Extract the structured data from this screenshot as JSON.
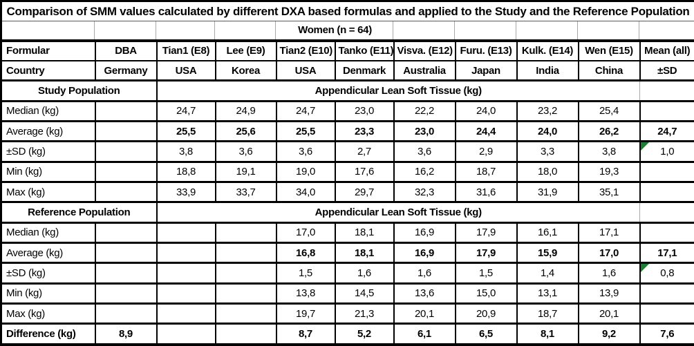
{
  "colors": {
    "border": "#000000",
    "gridline": "#a6a6a6",
    "error_indicator": "#1e7d32",
    "background": "#ffffff",
    "text": "#000000"
  },
  "icons": {
    "error_indicator": "excel-error-triangle"
  },
  "chart_data": {
    "type": "table",
    "title": "Comparison of SMM values calculated by different DXA based formulas and applied to the Study and the Reference Population",
    "subtitle": "Women (n = 64)",
    "header": {
      "formula_label": "Formular",
      "country_label": "Country",
      "formulas": [
        "DBA",
        "Tian1 (E8)",
        "Lee (E9)",
        "Tian2 (E10)",
        "Tanko (E11)",
        "Visva. (E12)",
        "Furu. (E13)",
        "Kulk. (E14)",
        "Wen (E15)",
        "Mean (all)"
      ],
      "countries": [
        "Germany",
        "USA",
        "Korea",
        "USA",
        "Denmark",
        "Australia",
        "Japan",
        "India",
        "China",
        "±SD"
      ]
    },
    "sections": [
      {
        "title": "Study Population",
        "measure": "Appendicular Lean Soft Tissue (kg)",
        "rows": [
          {
            "label": "Median (kg)",
            "bold": false,
            "error_mean": false,
            "values": [
              "",
              "24,7",
              "24,9",
              "24,7",
              "23,0",
              "22,2",
              "24,0",
              "23,2",
              "25,4",
              ""
            ]
          },
          {
            "label": "Average (kg)",
            "bold": true,
            "error_mean": false,
            "values": [
              "",
              "25,5",
              "25,6",
              "25,5",
              "23,3",
              "23,0",
              "24,4",
              "24,0",
              "26,2",
              "24,7"
            ]
          },
          {
            "label": "±SD (kg)",
            "bold": false,
            "error_mean": true,
            "values": [
              "",
              "3,8",
              "3,6",
              "3,6",
              "2,7",
              "3,6",
              "2,9",
              "3,3",
              "3,8",
              "1,0"
            ]
          },
          {
            "label": "Min (kg)",
            "bold": false,
            "error_mean": false,
            "values": [
              "",
              "18,8",
              "19,1",
              "19,0",
              "17,6",
              "16,2",
              "18,7",
              "18,0",
              "19,3",
              ""
            ]
          },
          {
            "label": "Max (kg)",
            "bold": false,
            "error_mean": false,
            "values": [
              "",
              "33,9",
              "33,7",
              "34,0",
              "29,7",
              "32,3",
              "31,6",
              "31,9",
              "35,1",
              ""
            ]
          }
        ]
      },
      {
        "title": "Reference Population",
        "measure": "Appendicular Lean Soft Tissue (kg)",
        "rows": [
          {
            "label": "Median (kg)",
            "bold": false,
            "error_mean": false,
            "values": [
              "",
              "",
              "",
              "17,0",
              "18,1",
              "16,9",
              "17,9",
              "16,1",
              "17,1",
              ""
            ]
          },
          {
            "label": "Average (kg)",
            "bold": true,
            "error_mean": false,
            "values": [
              "",
              "",
              "",
              "16,8",
              "18,1",
              "16,9",
              "17,9",
              "15,9",
              "17,0",
              "17,1"
            ]
          },
          {
            "label": "±SD (kg)",
            "bold": false,
            "error_mean": true,
            "values": [
              "",
              "",
              "",
              "1,5",
              "1,6",
              "1,6",
              "1,5",
              "1,4",
              "1,6",
              "0,8"
            ]
          },
          {
            "label": "Min (kg)",
            "bold": false,
            "error_mean": false,
            "values": [
              "",
              "",
              "",
              "13,8",
              "14,5",
              "13,6",
              "15,0",
              "13,1",
              "13,9",
              ""
            ]
          },
          {
            "label": "Max (kg)",
            "bold": false,
            "error_mean": false,
            "values": [
              "",
              "",
              "",
              "19,7",
              "21,3",
              "20,1",
              "20,9",
              "18,7",
              "20,1",
              ""
            ]
          }
        ]
      }
    ],
    "difference_row": {
      "label": "Difference (kg)",
      "values": [
        "8,9",
        "",
        "",
        "8,7",
        "5,2",
        "6,1",
        "6,5",
        "8,1",
        "9,2",
        "7,6"
      ]
    }
  }
}
